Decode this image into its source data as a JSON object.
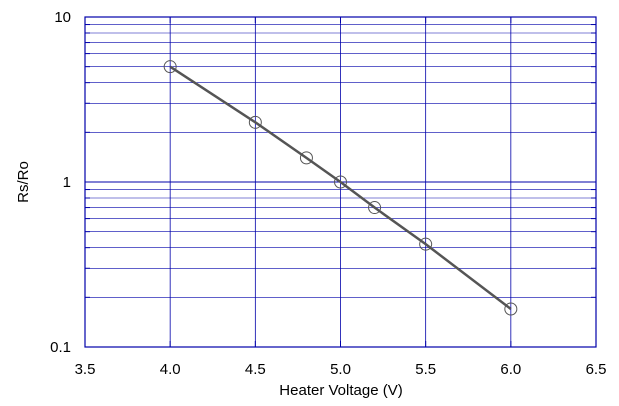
{
  "chart_data": {
    "type": "line",
    "title": "",
    "xlabel": "Heater Voltage (V)",
    "ylabel": "Rs/Ro",
    "xlim": [
      3.5,
      6.5
    ],
    "ylim": [
      0.1,
      10
    ],
    "yscale": "log",
    "grid": true,
    "x_ticks": [
      3.5,
      4.0,
      4.5,
      5.0,
      5.5,
      6.0,
      6.5
    ],
    "x_tick_labels": [
      "3.5",
      "4.0",
      "4.5",
      "5.0",
      "5.5",
      "6.0",
      "6.5"
    ],
    "y_ticks": [
      0.1,
      1,
      10
    ],
    "y_tick_labels": [
      "0.1",
      "1",
      "10"
    ],
    "series": [
      {
        "x": [
          4.0,
          4.5,
          4.8,
          5.0,
          5.2,
          5.5,
          6.0
        ],
        "y": [
          5.0,
          2.3,
          1.4,
          1.0,
          0.7,
          0.42,
          0.17
        ],
        "marker": "open-circle",
        "line_color": "#555555",
        "marker_color": "#555555"
      }
    ],
    "colors": {
      "frame": "#0000aa",
      "grid": "#0000aa",
      "line": "#555555"
    }
  }
}
